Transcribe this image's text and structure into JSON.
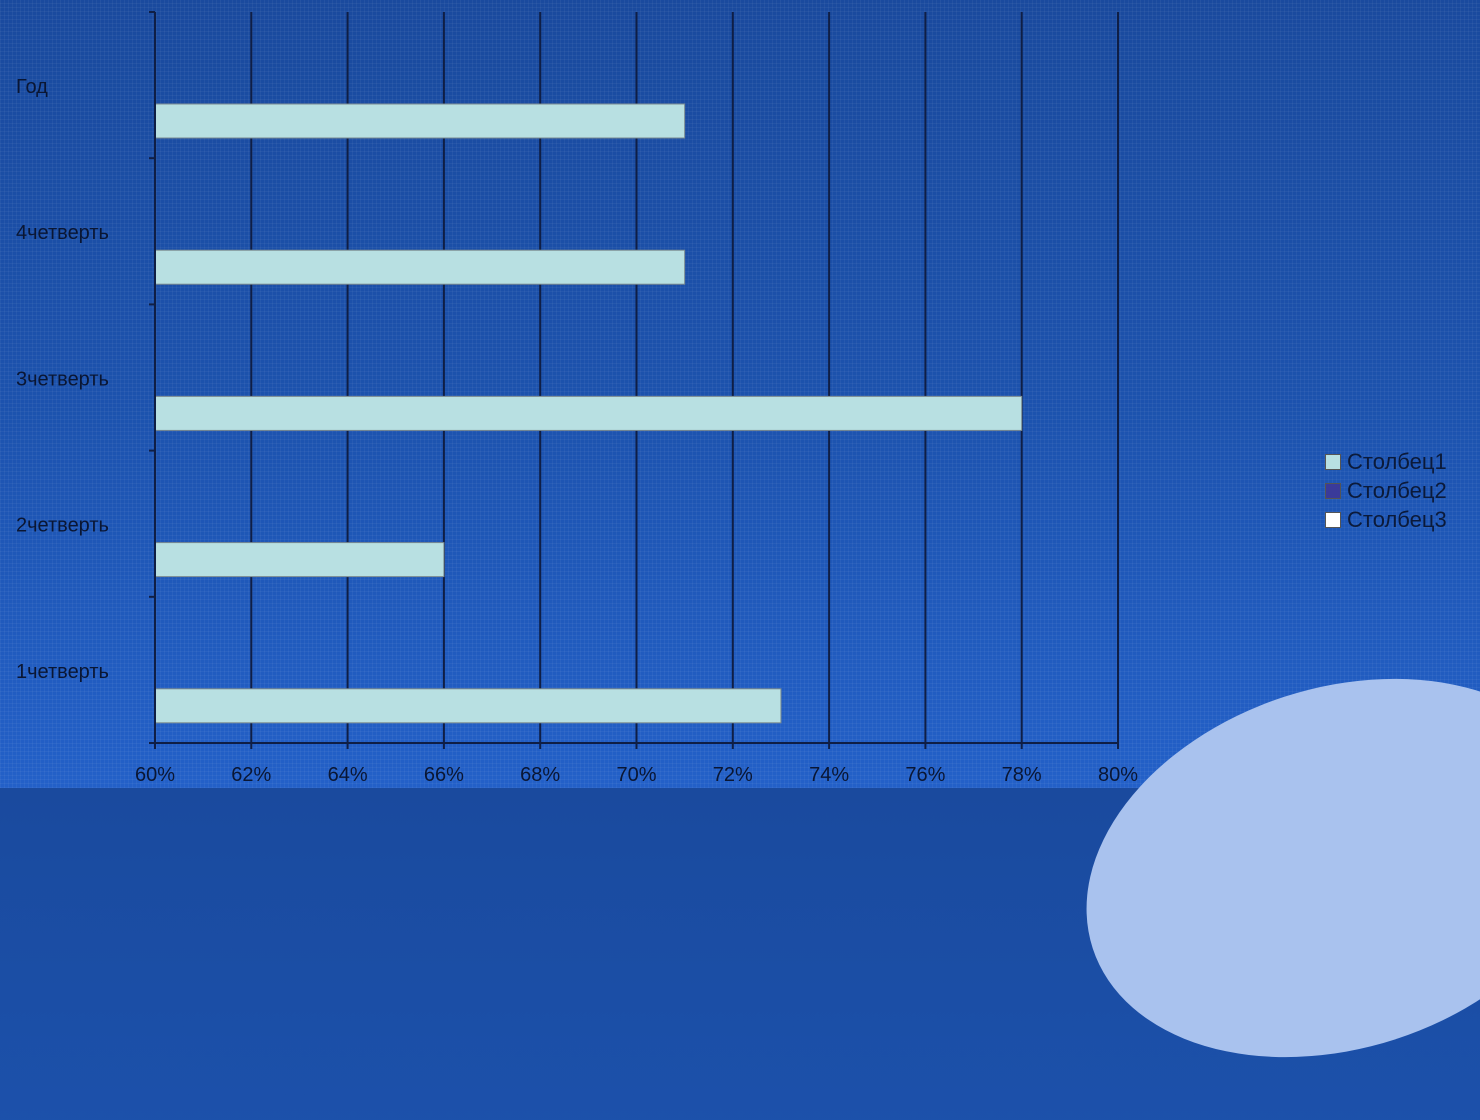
{
  "chart_data": {
    "type": "bar",
    "orientation": "horizontal",
    "categories": [
      "Год",
      "4четверть",
      "3четверть",
      "2четверть",
      "1четверть"
    ],
    "series": [
      {
        "name": "Столбец1",
        "values": [
          71,
          71,
          78,
          66,
          73
        ],
        "color": "#b8e0e2"
      },
      {
        "name": "Столбец2",
        "values": [
          null,
          null,
          null,
          null,
          null
        ],
        "color": "#3a3a9a"
      },
      {
        "name": "Столбец3",
        "values": [
          null,
          null,
          null,
          null,
          null
        ],
        "color": "#ffffff"
      }
    ],
    "xlim": [
      60,
      80
    ],
    "x_ticks": [
      60,
      62,
      64,
      66,
      68,
      70,
      72,
      74,
      76,
      78,
      80
    ],
    "x_tick_labels": [
      "60%",
      "62%",
      "64%",
      "66%",
      "68%",
      "70%",
      "72%",
      "74%",
      "76%",
      "78%",
      "80%"
    ],
    "grid": true,
    "legend_position": "right",
    "colors": {
      "gridline": "#0f1e45",
      "bar_border": "#7a8a90"
    }
  }
}
